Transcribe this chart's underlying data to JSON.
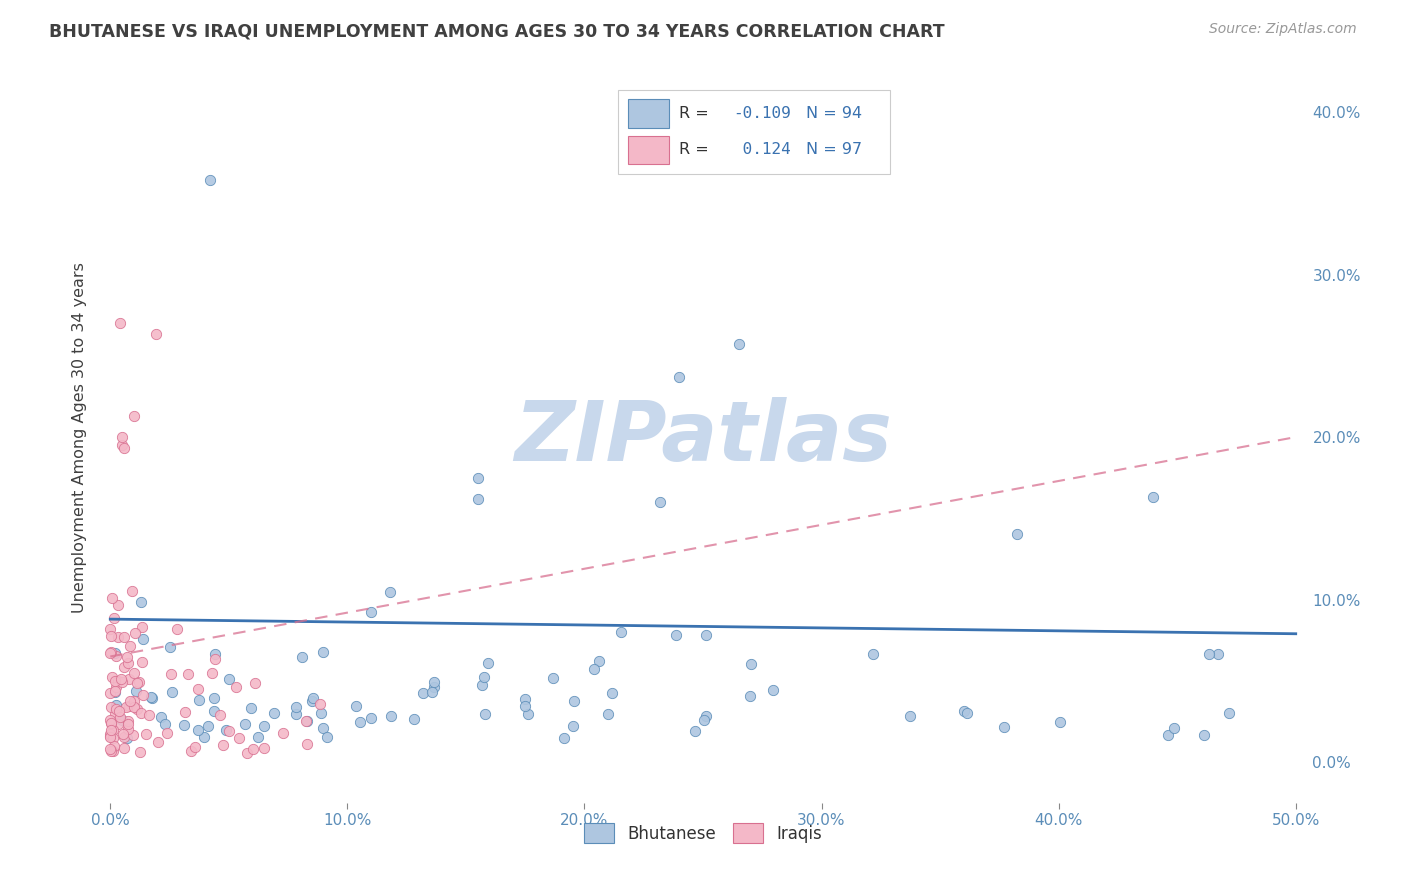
{
  "title": "BHUTANESE VS IRAQI UNEMPLOYMENT AMONG AGES 30 TO 34 YEARS CORRELATION CHART",
  "source": "Source: ZipAtlas.com",
  "ylabel": "Unemployment Among Ages 30 to 34 years",
  "xlim": [
    -0.005,
    0.505
  ],
  "ylim": [
    -0.025,
    0.425
  ],
  "x_tick_vals": [
    0.0,
    0.1,
    0.2,
    0.3,
    0.4,
    0.5
  ],
  "y_tick_vals": [
    0.0,
    0.1,
    0.2,
    0.3,
    0.4
  ],
  "bhutanese_color": "#aec6e0",
  "bhutanese_edge_color": "#5b8db8",
  "iraqi_color": "#f4b8c8",
  "iraqi_edge_color": "#d87090",
  "blue_line_color": "#3a72b0",
  "pink_line_color": "#d87090",
  "grid_color": "#cccccc",
  "background_color": "#ffffff",
  "title_color": "#404040",
  "source_color": "#999999",
  "tick_color": "#5b8db8",
  "ylabel_color": "#404040",
  "watermark_color": "#c8d8ec",
  "legend_r1": "R = -0.109",
  "legend_n1": "N = 94",
  "legend_r2": "R =  0.124",
  "legend_n2": "N = 97",
  "blue_line_intercept": 0.088,
  "blue_line_slope": -0.018,
  "pink_line_intercept": 0.065,
  "pink_line_slope": 0.27
}
